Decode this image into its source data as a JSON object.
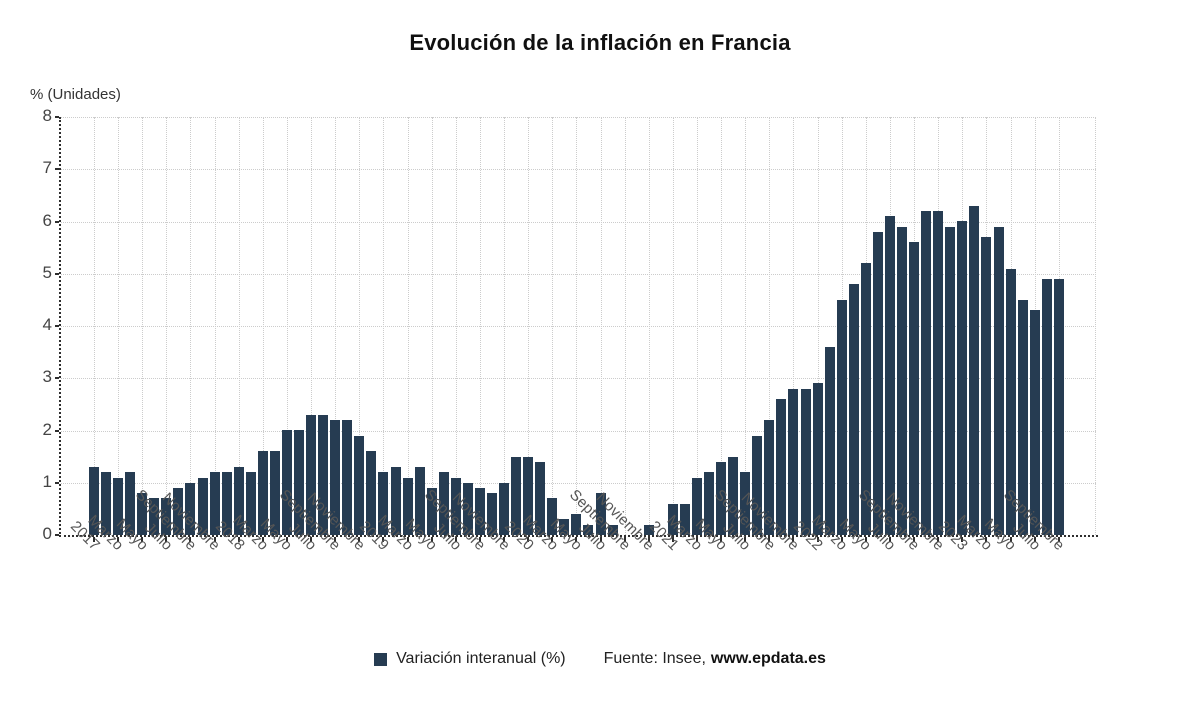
{
  "title": "Evolución de la inflación en Francia",
  "axes": {
    "unit_label": "% (Unidades)",
    "y_ticks": [
      0,
      1,
      2,
      3,
      4,
      5,
      6,
      7,
      8
    ]
  },
  "legend": {
    "series_label": "Variación interanual (%)",
    "source_prefix": "Fuente: Insee,",
    "source_site": "www.epdata.es"
  },
  "colors": {
    "bar": "#263C52",
    "grid": "#cccccc",
    "axis": "#2e2e2e",
    "y_tick_label": "#444444",
    "x_tick_label": "#555555",
    "title": "#101010",
    "background": "#ffffff"
  },
  "chart_data": {
    "type": "bar",
    "title": "Evolución de la inflación en Francia",
    "series_name": "Variación interanual (%)",
    "ylabel": "% (Unidades)",
    "ylim": [
      0,
      8
    ],
    "grid": true,
    "legend_position": "bottom",
    "x_tick_every": 2,
    "x_tick_labels": [
      "2017",
      "Marzo",
      "Mayo",
      "Julio",
      "Septiembre",
      "Noviembre",
      "2018",
      "Marzo",
      "Mayo",
      "Julio",
      "Septiembre",
      "Noviembre",
      "2019",
      "Marzo",
      "Mayo",
      "Julio",
      "Septiembre",
      "Noviembre",
      "2020",
      "Marzo",
      "Mayo",
      "Julio",
      "Septiembre",
      "Noviembre",
      "2021",
      "Marzo",
      "Mayo",
      "Julio",
      "Septiembre",
      "Noviembre",
      "2022",
      "Marzo",
      "Mayo",
      "Julio",
      "Septiembre",
      "Noviembre",
      "2023",
      "Marzo",
      "Mayo",
      "Julio",
      "Septiembre"
    ],
    "values": [
      1.3,
      1.2,
      1.1,
      1.2,
      0.8,
      0.7,
      0.7,
      0.9,
      1.0,
      1.1,
      1.2,
      1.2,
      1.3,
      1.2,
      1.6,
      1.6,
      2.0,
      2.0,
      2.3,
      2.3,
      2.2,
      2.2,
      1.9,
      1.6,
      1.2,
      1.3,
      1.1,
      1.3,
      0.9,
      1.2,
      1.1,
      1.0,
      0.9,
      0.8,
      1.0,
      1.5,
      1.5,
      1.4,
      0.7,
      0.3,
      0.4,
      0.2,
      0.8,
      0.2,
      0.0,
      0.0,
      0.2,
      0.0,
      0.6,
      0.6,
      1.1,
      1.2,
      1.4,
      1.5,
      1.2,
      1.9,
      2.2,
      2.6,
      2.8,
      2.8,
      2.9,
      3.6,
      4.5,
      4.8,
      5.2,
      5.8,
      6.1,
      5.9,
      5.6,
      6.2,
      6.2,
      5.9,
      6.0,
      6.3,
      5.7,
      5.9,
      5.1,
      4.5,
      4.3,
      4.9,
      4.9
    ]
  }
}
